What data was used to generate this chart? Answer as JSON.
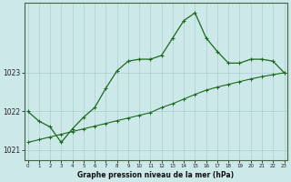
{
  "xlabel": "Graphe pression niveau de la mer (hPa)",
  "background_color": "#cce8e8",
  "line_color": "#1a6b1a",
  "grid_color": "#aacfcf",
  "hours": [
    0,
    1,
    2,
    3,
    4,
    5,
    6,
    7,
    8,
    9,
    10,
    11,
    12,
    13,
    14,
    15,
    16,
    17,
    18,
    19,
    20,
    21,
    22,
    23
  ],
  "pressure_main": [
    1022.0,
    1021.75,
    1021.6,
    1021.2,
    1021.55,
    1021.85,
    1022.1,
    1022.6,
    1023.05,
    1023.3,
    1023.35,
    1023.35,
    1023.45,
    1023.9,
    1024.35,
    1024.55,
    1023.9,
    1023.55,
    1023.25,
    1023.25,
    1023.35,
    1023.35,
    1023.3,
    1023.0
  ],
  "pressure_linear": [
    1021.2,
    1021.27,
    1021.34,
    1021.41,
    1021.48,
    1021.55,
    1021.62,
    1021.69,
    1021.76,
    1021.83,
    1021.9,
    1021.97,
    1022.1,
    1022.2,
    1022.32,
    1022.44,
    1022.55,
    1022.63,
    1022.7,
    1022.77,
    1022.84,
    1022.9,
    1022.95,
    1023.0
  ],
  "yticks": [
    1021,
    1022,
    1023
  ],
  "ylim": [
    1020.75,
    1024.8
  ],
  "xlim": [
    -0.3,
    23.3
  ]
}
